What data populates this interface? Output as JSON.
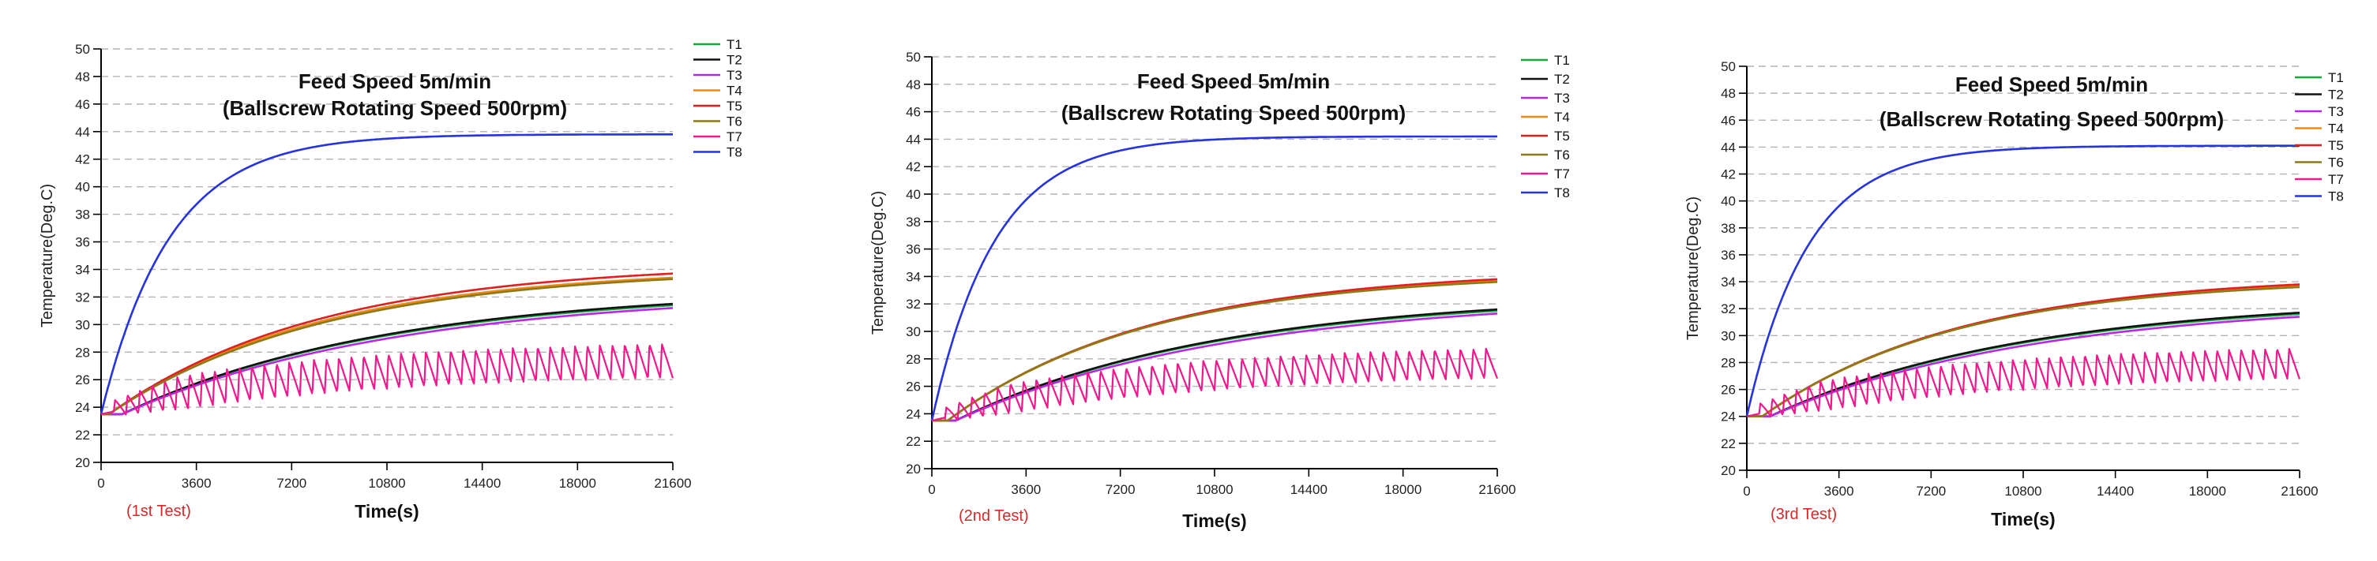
{
  "colors": {
    "T1": "#1aa83c",
    "T2": "#111111",
    "T3": "#b428e6",
    "T4": "#f08a14",
    "T5": "#e02020",
    "T6": "#8c7a1a",
    "T7": "#f0188c",
    "T8": "#2633e0",
    "test_label": "#d42a2a",
    "grid": "#b4b4b4"
  },
  "chart_data": [
    {
      "type": "line",
      "name": "1st Test",
      "title_line1": "Feed Speed 5m/min",
      "title_line2": "(Ballscrew Rotating Speed 500rpm)",
      "xlabel": "Time(s)",
      "ylabel": "Temperature(Deg.C)",
      "test_label": "(1st Test)",
      "xlim": [
        0,
        21600
      ],
      "ylim": [
        20,
        50
      ],
      "xticks": [
        0,
        3600,
        7200,
        10800,
        14400,
        18000,
        21600
      ],
      "yticks": [
        20,
        22,
        24,
        26,
        28,
        30,
        32,
        34,
        36,
        38,
        40,
        42,
        44,
        46,
        48,
        50
      ],
      "legend": [
        "T1",
        "T2",
        "T3",
        "T4",
        "T5",
        "T6",
        "T7",
        "T8"
      ],
      "start_temp": 23.5,
      "series": [
        {
          "name": "T1",
          "end": 31.4,
          "tau": 10000,
          "delay": 800
        },
        {
          "name": "T2",
          "end": 31.5,
          "tau": 10000,
          "delay": 800
        },
        {
          "name": "T3",
          "end": 31.2,
          "tau": 10500,
          "delay": 800
        },
        {
          "name": "T4",
          "end": 33.4,
          "tau": 8000,
          "delay": 300
        },
        {
          "name": "T5",
          "end": 33.7,
          "tau": 8000,
          "delay": 300
        },
        {
          "name": "T6",
          "end": 33.3,
          "tau": 8200,
          "delay": 300
        },
        {
          "name": "T7",
          "base_end": 27.2,
          "amp": 2.5,
          "cycles": 46,
          "tau": 9000
        },
        {
          "name": "T8",
          "end": 43.8,
          "tau": 2600,
          "delay": 0
        }
      ]
    },
    {
      "type": "line",
      "name": "2nd Test",
      "title_line1": "Feed Speed 5m/min",
      "title_line2": "(Ballscrew Rotating Speed 500rpm)",
      "xlabel": "Time(s)",
      "ylabel": "Temperature(Deg.C)",
      "test_label": "(2nd Test)",
      "xlim": [
        0,
        21600
      ],
      "ylim": [
        20,
        50
      ],
      "xticks": [
        0,
        3600,
        7200,
        10800,
        14400,
        18000,
        21600
      ],
      "yticks": [
        20,
        22,
        24,
        26,
        28,
        30,
        32,
        34,
        36,
        38,
        40,
        42,
        44,
        46,
        48,
        50
      ],
      "legend": [
        "T1",
        "T2",
        "T3",
        "T4",
        "T5",
        "T6",
        "T7",
        "T8"
      ],
      "start_temp": 23.5,
      "series": [
        {
          "name": "T1",
          "end": 31.5,
          "tau": 10000,
          "delay": 900
        },
        {
          "name": "T2",
          "end": 31.6,
          "tau": 10000,
          "delay": 900
        },
        {
          "name": "T3",
          "end": 31.3,
          "tau": 10500,
          "delay": 900
        },
        {
          "name": "T4",
          "end": 33.7,
          "tau": 7800,
          "delay": 600
        },
        {
          "name": "T5",
          "end": 33.8,
          "tau": 7800,
          "delay": 600
        },
        {
          "name": "T6",
          "end": 33.6,
          "tau": 7600,
          "delay": 600
        },
        {
          "name": "T7",
          "base_end": 27.6,
          "amp": 2.2,
          "cycles": 44,
          "tau": 9000
        },
        {
          "name": "T8",
          "end": 44.2,
          "tau": 2400,
          "delay": 0
        }
      ]
    },
    {
      "type": "line",
      "name": "3rd Test",
      "title_line1": "Feed Speed 5m/min",
      "title_line2": "(Ballscrew Rotating Speed 500rpm)",
      "xlabel": "Time(s)",
      "ylabel": "Temperature(Deg.C)",
      "test_label": "(3rd Test)",
      "xlim": [
        0,
        21600
      ],
      "ylim": [
        20,
        50
      ],
      "xticks": [
        0,
        3600,
        7200,
        10800,
        14400,
        18000,
        21600
      ],
      "yticks": [
        20,
        22,
        24,
        26,
        28,
        30,
        32,
        34,
        36,
        38,
        40,
        42,
        44,
        46,
        48,
        50
      ],
      "legend": [
        "T1",
        "T2",
        "T3",
        "T4",
        "T5",
        "T6",
        "T7",
        "T8"
      ],
      "start_temp": 24.0,
      "series": [
        {
          "name": "T1",
          "end": 31.6,
          "tau": 10000,
          "delay": 900
        },
        {
          "name": "T2",
          "end": 31.7,
          "tau": 10000,
          "delay": 900
        },
        {
          "name": "T3",
          "end": 31.4,
          "tau": 10500,
          "delay": 900
        },
        {
          "name": "T4",
          "end": 33.7,
          "tau": 7800,
          "delay": 600
        },
        {
          "name": "T5",
          "end": 33.8,
          "tau": 7800,
          "delay": 600
        },
        {
          "name": "T6",
          "end": 33.6,
          "tau": 7600,
          "delay": 600
        },
        {
          "name": "T7",
          "base_end": 27.8,
          "amp": 2.3,
          "cycles": 46,
          "tau": 9000
        },
        {
          "name": "T8",
          "end": 44.1,
          "tau": 2400,
          "delay": 0
        }
      ]
    }
  ]
}
